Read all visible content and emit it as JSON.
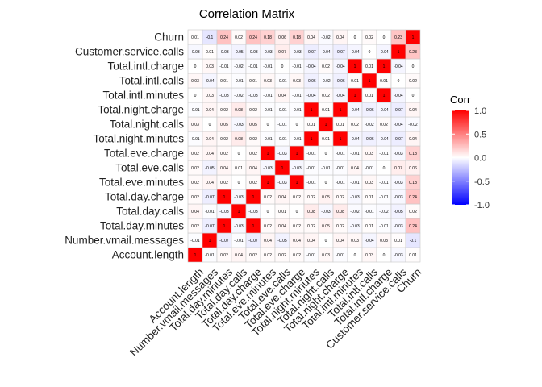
{
  "chart_data": {
    "type": "heatmap",
    "title": "Correlation Matrix",
    "xlabel": "",
    "ylabel": "",
    "variables": [
      "Account.length",
      "Number.vmail.messages",
      "Total.day.minutes",
      "Total.day.calls",
      "Total.day.charge",
      "Total.eve.minutes",
      "Total.eve.calls",
      "Total.eve.charge",
      "Total.night.minutes",
      "Total.night.calls",
      "Total.night.charge",
      "Total.intl.minutes",
      "Total.intl.calls",
      "Total.intl.charge",
      "Customer.service.calls",
      "Churn"
    ],
    "matrix": [
      [
        1,
        -0.01,
        0.02,
        0.04,
        0.02,
        0.02,
        0.02,
        0.02,
        -0.01,
        0.03,
        -0.01,
        0,
        0.03,
        0,
        -0.03,
        0.01
      ],
      [
        -0.01,
        1,
        -0.07,
        -0.01,
        -0.07,
        0.04,
        -0.05,
        0.04,
        0.04,
        0,
        0.04,
        0.03,
        -0.04,
        0.03,
        0.01,
        -0.1
      ],
      [
        0.02,
        -0.07,
        1,
        -0.03,
        1,
        0.02,
        0.04,
        0.02,
        0.02,
        0.05,
        0.02,
        -0.03,
        0.01,
        -0.01,
        -0.03,
        0.24
      ],
      [
        0.04,
        -0.01,
        -0.03,
        1,
        -0.03,
        0,
        0.01,
        0,
        0.08,
        -0.03,
        0.08,
        -0.02,
        -0.01,
        -0.02,
        -0.05,
        0.02
      ],
      [
        0.02,
        -0.07,
        1,
        -0.03,
        1,
        0.02,
        0.04,
        0.02,
        0.02,
        0.05,
        0.02,
        -0.03,
        0.01,
        -0.01,
        -0.03,
        0.24
      ],
      [
        0.02,
        0.04,
        0.02,
        0,
        0.02,
        1,
        -0.03,
        1,
        -0.01,
        0,
        -0.01,
        -0.01,
        0.03,
        -0.01,
        -0.03,
        0.18
      ],
      [
        0.02,
        -0.05,
        0.04,
        0.01,
        0.04,
        -0.03,
        1,
        -0.03,
        -0.01,
        -0.01,
        -0.01,
        0.04,
        -0.01,
        0,
        0.07,
        0.06
      ],
      [
        0.02,
        0.04,
        0.02,
        0,
        0.02,
        1,
        -0.03,
        1,
        -0.01,
        0,
        -0.01,
        -0.01,
        0.03,
        -0.01,
        -0.03,
        0.18
      ],
      [
        -0.01,
        0.04,
        0.02,
        0.08,
        0.02,
        -0.01,
        -0.01,
        -0.01,
        1,
        0.01,
        1,
        -0.04,
        -0.06,
        -0.04,
        -0.07,
        0.04
      ],
      [
        0.03,
        0,
        0.05,
        -0.03,
        0.05,
        0,
        -0.01,
        0,
        0.01,
        1,
        0.01,
        0.02,
        -0.02,
        0.02,
        -0.04,
        -0.02
      ],
      [
        -0.01,
        0.04,
        0.02,
        0.08,
        0.02,
        -0.01,
        -0.01,
        -0.01,
        1,
        0.01,
        1,
        -0.04,
        -0.06,
        -0.04,
        -0.07,
        0.04
      ],
      [
        0,
        0.03,
        -0.03,
        -0.02,
        -0.03,
        -0.01,
        0.04,
        -0.01,
        -0.04,
        0.02,
        -0.04,
        1,
        0.01,
        1,
        -0.04,
        0
      ],
      [
        0.03,
        -0.04,
        0.01,
        -0.01,
        0.01,
        0.03,
        -0.01,
        0.03,
        -0.06,
        -0.02,
        -0.06,
        0.01,
        1,
        0.01,
        0,
        0.02
      ],
      [
        0,
        0.03,
        -0.01,
        -0.02,
        -0.01,
        -0.01,
        0,
        -0.01,
        -0.04,
        0.02,
        -0.04,
        1,
        0.01,
        1,
        -0.04,
        0
      ],
      [
        -0.03,
        0.01,
        -0.03,
        -0.05,
        -0.03,
        -0.03,
        0.07,
        -0.03,
        -0.07,
        -0.04,
        -0.07,
        -0.04,
        0,
        -0.04,
        1,
        0.23
      ],
      [
        0.01,
        -0.1,
        0.24,
        0.02,
        0.24,
        0.18,
        0.06,
        0.18,
        0.04,
        -0.02,
        0.04,
        0,
        0.02,
        0,
        0.23,
        1
      ]
    ],
    "legend": {
      "title": "Corr",
      "position": "right",
      "ticks": [
        1.0,
        0.5,
        0.0,
        -0.5,
        -1.0
      ],
      "tick_labels": [
        "1.0",
        "0.5",
        "0.0",
        "-0.5",
        "-1.0"
      ]
    },
    "colors": {
      "positive": "#ff0000",
      "neutral": "#ffffff",
      "negative": "#0000ff",
      "grid": "#c8c8c8"
    },
    "color_range": [
      -1,
      1
    ],
    "show_cell_labels": true,
    "grid": false
  }
}
